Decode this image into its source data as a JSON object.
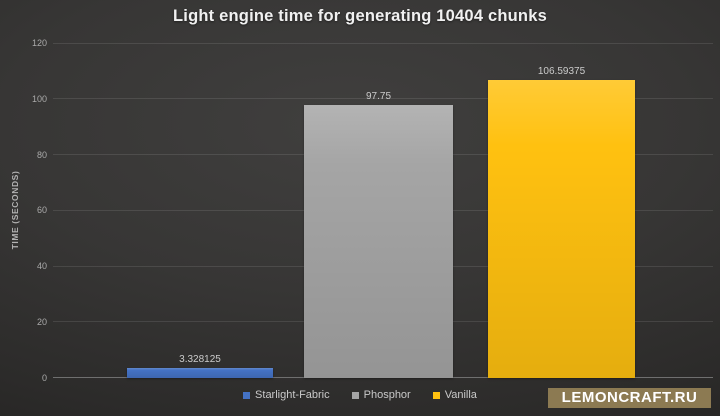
{
  "watermark": {
    "label": "LEMONCRAFT.RU",
    "background": "#8c7a52",
    "text_color": "#ffffff"
  },
  "chart_data": {
    "type": "bar",
    "title": "Light engine time for generating 10404 chunks",
    "categories": [
      "Starlight-Fabric",
      "Phosphor",
      "Vanilla"
    ],
    "values": [
      3.328125,
      97.75,
      106.59375
    ],
    "value_labels": [
      "3.328125",
      "97.75",
      "106.59375"
    ],
    "bar_colors": [
      "#4472c4",
      "#a5a5a5",
      "#ffc110"
    ],
    "xlabel": "",
    "ylabel": "TIME (SECONDS)",
    "ylim": [
      0,
      120
    ],
    "ytick_values": [
      120,
      100,
      80,
      60,
      40,
      20,
      0
    ],
    "ytick_labels": [
      "120",
      "100",
      "80",
      "60",
      "40",
      "20",
      "0"
    ],
    "grid": true,
    "legend_position": "bottom",
    "background": "dark-radial-gradient"
  }
}
